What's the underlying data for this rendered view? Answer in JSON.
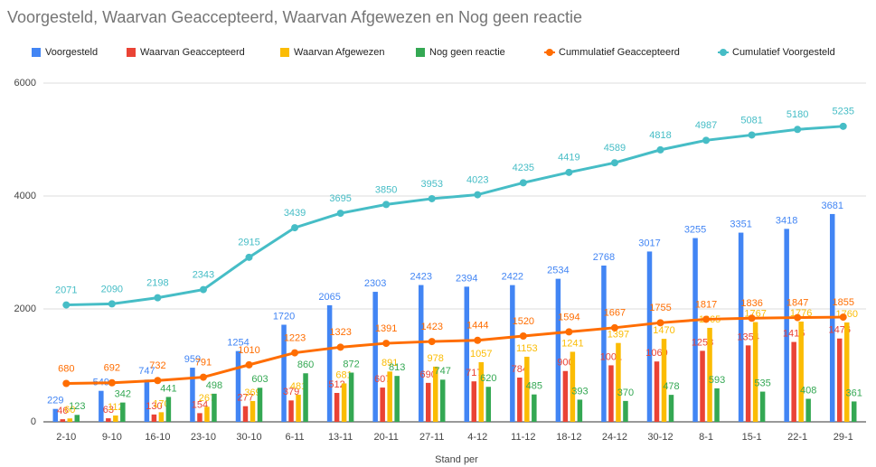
{
  "chart_data": {
    "type": "bar",
    "title": "Voorgesteld, Waarvan Geaccepteerd, Waarvan Afgewezen en Nog geen reactie",
    "x_label": "Stand per",
    "categories": [
      "2-10",
      "9-10",
      "16-10",
      "23-10",
      "30-10",
      "6-11",
      "13-11",
      "20-11",
      "27-11",
      "4-12",
      "11-12",
      "18-12",
      "24-12",
      "30-12",
      "8-1",
      "15-1",
      "22-1",
      "29-1"
    ],
    "series": [
      {
        "name": "Voorgesteld",
        "color": "#4285f4",
        "type": "bar",
        "values": [
          229,
          549,
          747,
          959,
          1254,
          1720,
          2065,
          2303,
          2423,
          2394,
          2422,
          2534,
          2768,
          3017,
          3255,
          3351,
          3418,
          3681
        ]
      },
      {
        "name": "Waarvan Geaccepteerd",
        "color": "#ea4335",
        "type": "bar",
        "values": [
          46,
          63,
          130,
          154,
          277,
          379,
          512,
          607,
          690,
          717,
          784,
          900,
          1001,
          1069,
          1258,
          1354,
          1415,
          1476
        ]
      },
      {
        "name": "Waarvan Afgewezen",
        "color": "#fbbc04",
        "type": "bar",
        "values": [
          60,
          112,
          170,
          267,
          369,
          481,
          681,
          891,
          978,
          1057,
          1153,
          1241,
          1397,
          1470,
          1665,
          1767,
          1776,
          1760
        ]
      },
      {
        "name": "Nog geen reactie",
        "color": "#34a853",
        "type": "bar",
        "values": [
          123,
          342,
          441,
          498,
          603,
          860,
          872,
          813,
          747,
          620,
          485,
          393,
          370,
          478,
          593,
          535,
          408,
          361
        ]
      },
      {
        "name": "Cummulatief Geaccepteerd",
        "color": "#ff6d01",
        "type": "line",
        "values": [
          680,
          692,
          732,
          791,
          1010,
          1223,
          1323,
          1391,
          1423,
          1444,
          1520,
          1594,
          1667,
          1755,
          1817,
          1836,
          1847,
          1855
        ]
      },
      {
        "name": "Cumulatief Voorgesteld",
        "color": "#46bdc6",
        "type": "line",
        "values": [
          2071,
          2090,
          2198,
          2343,
          2915,
          3439,
          3695,
          3850,
          3953,
          4023,
          4235,
          4419,
          4589,
          4818,
          4987,
          5081,
          5180,
          5235
        ]
      }
    ],
    "ylim": [
      0,
      6000
    ],
    "yticks": [
      0,
      2000,
      4000,
      6000
    ],
    "grid": true,
    "legend": "top"
  }
}
